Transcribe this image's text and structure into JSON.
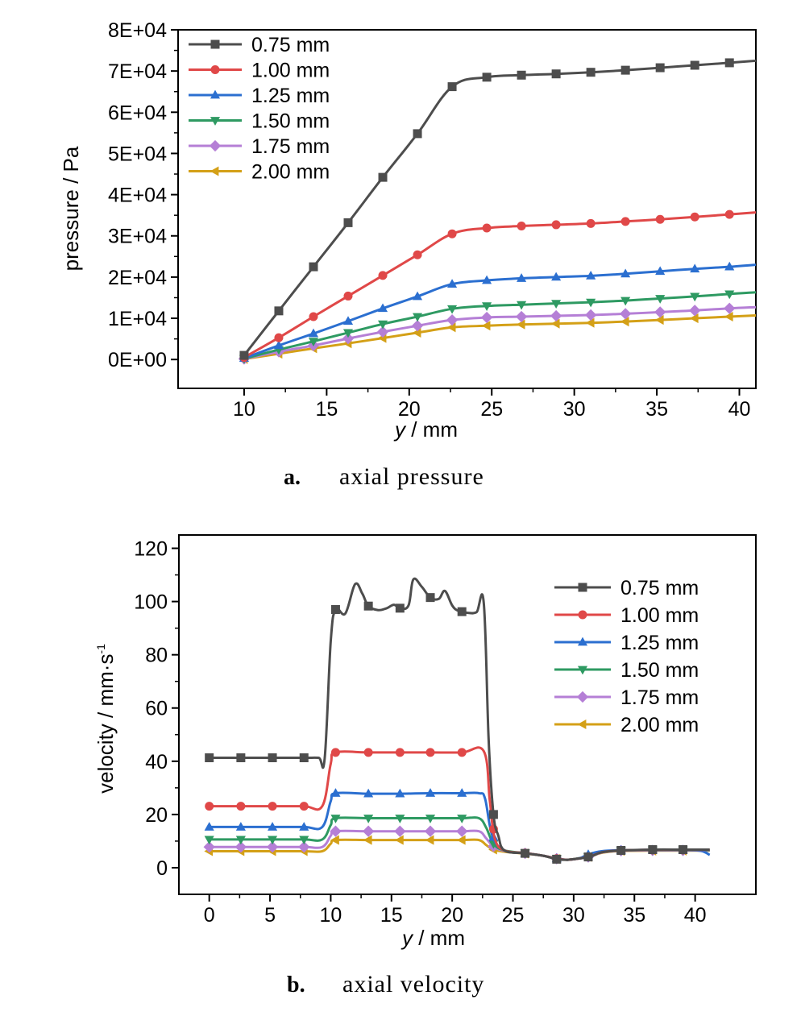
{
  "chart_data": [
    {
      "type": "line",
      "caption_letter": "a.",
      "caption": "axial pressure",
      "xlabel_var": "y",
      "xlabel_unit": " / mm",
      "ylabel": "pressure / Pa",
      "xlim": [
        6,
        41
      ],
      "ylim": [
        -7000,
        80000
      ],
      "xticks": [
        10,
        15,
        20,
        25,
        30,
        35,
        40
      ],
      "yticks": [
        0,
        10000,
        20000,
        30000,
        40000,
        50000,
        60000,
        70000,
        80000
      ],
      "ytick_labels": [
        "0E+00",
        "1E+04",
        "2E+04",
        "3E+04",
        "4E+04",
        "5E+04",
        "6E+04",
        "7E+04",
        "8E+04"
      ],
      "grid": false,
      "legend_position": "top-left",
      "x": [
        10,
        12.1,
        14.2,
        16.3,
        18.4,
        20.5,
        22.6,
        24.7,
        26.8,
        28.9,
        31.0,
        33.1,
        35.2,
        37.3,
        39.4,
        41
      ],
      "series": [
        {
          "name": "0.75 mm",
          "color": "#4d4d4d",
          "marker": "square",
          "values": [
            1000,
            11800,
            22500,
            33200,
            44200,
            54800,
            66200,
            68500,
            69000,
            69300,
            69700,
            70200,
            70800,
            71400,
            72000,
            72500
          ]
        },
        {
          "name": "1.00 mm",
          "color": "#e04848",
          "marker": "circle",
          "values": [
            500,
            5300,
            10400,
            15400,
            20400,
            25400,
            30500,
            31900,
            32400,
            32700,
            33000,
            33500,
            34000,
            34600,
            35200,
            35700
          ]
        },
        {
          "name": "1.25 mm",
          "color": "#2b6fd0",
          "marker": "triangle-up",
          "values": [
            300,
            3400,
            6300,
            9300,
            12400,
            15300,
            18300,
            19200,
            19700,
            20000,
            20300,
            20800,
            21400,
            22000,
            22500,
            23000
          ]
        },
        {
          "name": "1.50 mm",
          "color": "#2e9a62",
          "marker": "triangle-down",
          "values": [
            200,
            2400,
            4400,
            6500,
            8600,
            10400,
            12300,
            13000,
            13300,
            13600,
            13900,
            14300,
            14800,
            15300,
            15900,
            16300
          ]
        },
        {
          "name": "1.75 mm",
          "color": "#b57fd6",
          "marker": "diamond",
          "values": [
            150,
            1900,
            3400,
            5100,
            6700,
            8200,
            9600,
            10200,
            10400,
            10600,
            10800,
            11100,
            11500,
            11900,
            12400,
            12700
          ]
        },
        {
          "name": "2.00 mm",
          "color": "#d4a017",
          "marker": "triangle-left",
          "values": [
            100,
            1400,
            2700,
            3900,
            5200,
            6500,
            7800,
            8200,
            8500,
            8700,
            8900,
            9200,
            9600,
            10000,
            10400,
            10700
          ]
        }
      ]
    },
    {
      "type": "line",
      "caption_letter": "b.",
      "caption": "axial velocity",
      "xlabel_var": "y",
      "xlabel_unit": " / mm",
      "ylabel": "velocity / mm·s",
      "ylabel_sup": "-1",
      "xlim": [
        -2.5,
        45
      ],
      "ylim": [
        -10,
        125
      ],
      "xticks": [
        0,
        5,
        10,
        15,
        20,
        25,
        30,
        35,
        40
      ],
      "yticks": [
        0,
        20,
        40,
        60,
        80,
        100,
        120
      ],
      "ytick_labels": [
        "0",
        "20",
        "40",
        "60",
        "80",
        "100",
        "120"
      ],
      "grid": false,
      "legend_position": "top-right",
      "series": [
        {
          "name": "0.75 mm",
          "color": "#4d4d4d",
          "marker": "square",
          "points": [
            [
              0,
              41.3
            ],
            [
              2.6,
              41.3
            ],
            [
              5.2,
              41.3
            ],
            [
              7.8,
              41.3
            ],
            [
              9.0,
              41.3
            ],
            [
              9.5,
              41.0
            ],
            [
              10.0,
              85
            ],
            [
              10.4,
              97
            ],
            [
              11.2,
              95.5
            ],
            [
              12.0,
              106.5
            ],
            [
              12.6,
              103
            ],
            [
              13.1,
              98.3
            ],
            [
              13.9,
              96.8
            ],
            [
              14.6,
              97.5
            ],
            [
              15.2,
              98.8
            ],
            [
              15.7,
              97.5
            ],
            [
              16.4,
              98.5
            ],
            [
              16.8,
              108.3
            ],
            [
              17.5,
              105.5
            ],
            [
              18.2,
              101.5
            ],
            [
              18.9,
              101
            ],
            [
              19.4,
              104
            ],
            [
              20.0,
              98.5
            ],
            [
              20.5,
              96.5
            ],
            [
              21.2,
              95.8
            ],
            [
              22.0,
              96
            ],
            [
              22.6,
              99.5
            ],
            [
              23.0,
              48
            ],
            [
              23.4,
              20
            ],
            [
              23.8,
              12
            ],
            [
              24.3,
              6.5
            ],
            [
              26.0,
              5.4
            ],
            [
              27.5,
              4.5
            ],
            [
              28.6,
              3.2
            ],
            [
              29.5,
              3.0
            ],
            [
              30.5,
              3.5
            ],
            [
              31.4,
              4.2
            ],
            [
              32.3,
              5.8
            ],
            [
              33.9,
              6.5
            ],
            [
              36.5,
              6.8
            ],
            [
              39.0,
              6.8
            ],
            [
              41.2,
              6.8
            ]
          ],
          "marker_x": [
            0,
            2.6,
            5.2,
            7.8,
            10.4,
            13.1,
            15.7,
            18.2,
            20.8,
            23.4,
            26.0,
            28.6,
            31.2,
            33.9,
            36.5,
            39.0
          ]
        },
        {
          "name": "1.00 mm",
          "color": "#e04848",
          "marker": "circle",
          "points": [
            [
              0,
              23.1
            ],
            [
              2.6,
              23.1
            ],
            [
              5.2,
              23.1
            ],
            [
              7.8,
              23.1
            ],
            [
              9.3,
              23.1
            ],
            [
              10.0,
              39
            ],
            [
              10.4,
              43.3
            ],
            [
              13.1,
              43.3
            ],
            [
              15.7,
              43.3
            ],
            [
              18.2,
              43.3
            ],
            [
              20.8,
              43.3
            ],
            [
              22.6,
              43.8
            ],
            [
              23.1,
              25
            ],
            [
              23.5,
              11
            ],
            [
              24.3,
              6.5
            ],
            [
              26.0,
              5.5
            ],
            [
              27.5,
              4.5
            ],
            [
              28.6,
              3.4
            ],
            [
              29.5,
              3.0
            ],
            [
              30.5,
              3.5
            ],
            [
              31.4,
              4.3
            ],
            [
              32.3,
              5.8
            ],
            [
              33.9,
              6.5
            ],
            [
              36.5,
              6.7
            ],
            [
              39.0,
              6.7
            ],
            [
              41.2,
              6.7
            ]
          ],
          "marker_x": [
            0,
            2.6,
            5.2,
            7.8,
            10.4,
            13.1,
            15.7,
            18.2,
            20.8,
            23.4,
            26.0,
            28.6,
            31.2,
            33.9,
            36.5,
            39.0
          ]
        },
        {
          "name": "1.25 mm",
          "color": "#2b6fd0",
          "marker": "triangle-up",
          "points": [
            [
              0,
              15.3
            ],
            [
              2.6,
              15.3
            ],
            [
              5.2,
              15.3
            ],
            [
              7.8,
              15.3
            ],
            [
              9.3,
              15.3
            ],
            [
              10.0,
              25
            ],
            [
              10.4,
              28.0
            ],
            [
              13.1,
              27.8
            ],
            [
              15.7,
              27.8
            ],
            [
              18.2,
              28.0
            ],
            [
              20.8,
              28.0
            ],
            [
              22.2,
              28.0
            ],
            [
              22.7,
              26
            ],
            [
              23.3,
              12
            ],
            [
              24.3,
              6.5
            ],
            [
              26.0,
              5.5
            ],
            [
              27.5,
              4.5
            ],
            [
              28.6,
              3.4
            ],
            [
              29.5,
              3.0
            ],
            [
              30.5,
              3.6
            ],
            [
              31.2,
              5.0
            ],
            [
              32.3,
              6.2
            ],
            [
              33.9,
              6.6
            ],
            [
              36.5,
              6.7
            ],
            [
              39.0,
              6.7
            ],
            [
              40.5,
              6.3
            ],
            [
              41.2,
              4.8
            ]
          ],
          "marker_x": [
            0,
            2.6,
            5.2,
            7.8,
            10.4,
            13.1,
            15.7,
            18.2,
            20.8,
            23.4,
            26.0,
            28.6,
            31.2,
            33.9,
            36.5,
            39.0
          ]
        },
        {
          "name": "1.50 mm",
          "color": "#2e9a62",
          "marker": "triangle-down",
          "points": [
            [
              0,
              10.6
            ],
            [
              2.6,
              10.6
            ],
            [
              5.2,
              10.6
            ],
            [
              7.8,
              10.6
            ],
            [
              9.3,
              10.6
            ],
            [
              10.0,
              16
            ],
            [
              10.4,
              18.6
            ],
            [
              13.1,
              18.6
            ],
            [
              15.7,
              18.6
            ],
            [
              18.2,
              18.6
            ],
            [
              20.8,
              18.6
            ],
            [
              22.2,
              18.6
            ],
            [
              22.8,
              15
            ],
            [
              23.4,
              9
            ],
            [
              24.3,
              6.5
            ],
            [
              26.0,
              5.5
            ],
            [
              27.5,
              4.5
            ],
            [
              28.6,
              3.4
            ],
            [
              29.5,
              3.0
            ],
            [
              30.5,
              3.6
            ],
            [
              31.4,
              4.3
            ],
            [
              32.3,
              5.8
            ],
            [
              33.9,
              6.5
            ],
            [
              36.5,
              6.6
            ],
            [
              39.0,
              6.6
            ],
            [
              41.2,
              6.6
            ]
          ],
          "marker_x": [
            0,
            2.6,
            5.2,
            7.8,
            10.4,
            13.1,
            15.7,
            18.2,
            20.8,
            23.4,
            26.0,
            28.6,
            31.2,
            33.9,
            36.5,
            39.0
          ]
        },
        {
          "name": "1.75 mm",
          "color": "#b57fd6",
          "marker": "diamond",
          "points": [
            [
              0,
              7.8
            ],
            [
              2.6,
              7.8
            ],
            [
              5.2,
              7.8
            ],
            [
              7.8,
              7.8
            ],
            [
              9.3,
              7.8
            ],
            [
              10.0,
              12
            ],
            [
              10.4,
              13.7
            ],
            [
              13.1,
              13.7
            ],
            [
              15.7,
              13.7
            ],
            [
              18.2,
              13.7
            ],
            [
              20.8,
              13.7
            ],
            [
              22.2,
              13.7
            ],
            [
              22.8,
              11
            ],
            [
              23.4,
              8
            ],
            [
              24.3,
              6.3
            ],
            [
              26.0,
              5.4
            ],
            [
              27.5,
              4.5
            ],
            [
              28.6,
              3.4
            ],
            [
              29.5,
              3.0
            ],
            [
              30.5,
              3.5
            ],
            [
              31.4,
              4.2
            ],
            [
              32.3,
              5.7
            ],
            [
              33.9,
              6.4
            ],
            [
              36.5,
              6.5
            ],
            [
              39.0,
              6.5
            ],
            [
              41.2,
              6.5
            ]
          ],
          "marker_x": [
            0,
            2.6,
            5.2,
            7.8,
            10.4,
            13.1,
            15.7,
            18.2,
            20.8,
            23.4,
            26.0,
            28.6,
            31.2,
            33.9,
            36.5,
            39.0
          ]
        },
        {
          "name": "2.00 mm",
          "color": "#d4a017",
          "marker": "triangle-left",
          "points": [
            [
              0,
              6.2
            ],
            [
              2.6,
              6.2
            ],
            [
              5.2,
              6.2
            ],
            [
              7.8,
              6.2
            ],
            [
              9.3,
              6.2
            ],
            [
              10.0,
              9
            ],
            [
              10.4,
              10.4
            ],
            [
              13.1,
              10.4
            ],
            [
              15.7,
              10.4
            ],
            [
              18.2,
              10.4
            ],
            [
              20.8,
              10.4
            ],
            [
              22.2,
              10.4
            ],
            [
              22.8,
              8.5
            ],
            [
              23.4,
              6.8
            ],
            [
              24.3,
              6.0
            ],
            [
              26.0,
              5.3
            ],
            [
              27.5,
              4.5
            ],
            [
              28.6,
              3.3
            ],
            [
              29.5,
              3.0
            ],
            [
              30.5,
              3.5
            ],
            [
              31.4,
              4.2
            ],
            [
              32.3,
              5.6
            ],
            [
              33.9,
              6.3
            ],
            [
              36.5,
              6.4
            ],
            [
              39.0,
              6.4
            ],
            [
              41.2,
              6.4
            ]
          ],
          "marker_x": [
            0,
            2.6,
            5.2,
            7.8,
            10.4,
            13.1,
            15.7,
            18.2,
            20.8,
            23.4,
            26.0,
            28.6,
            31.2,
            33.9,
            36.5,
            39.0
          ]
        }
      ]
    }
  ]
}
